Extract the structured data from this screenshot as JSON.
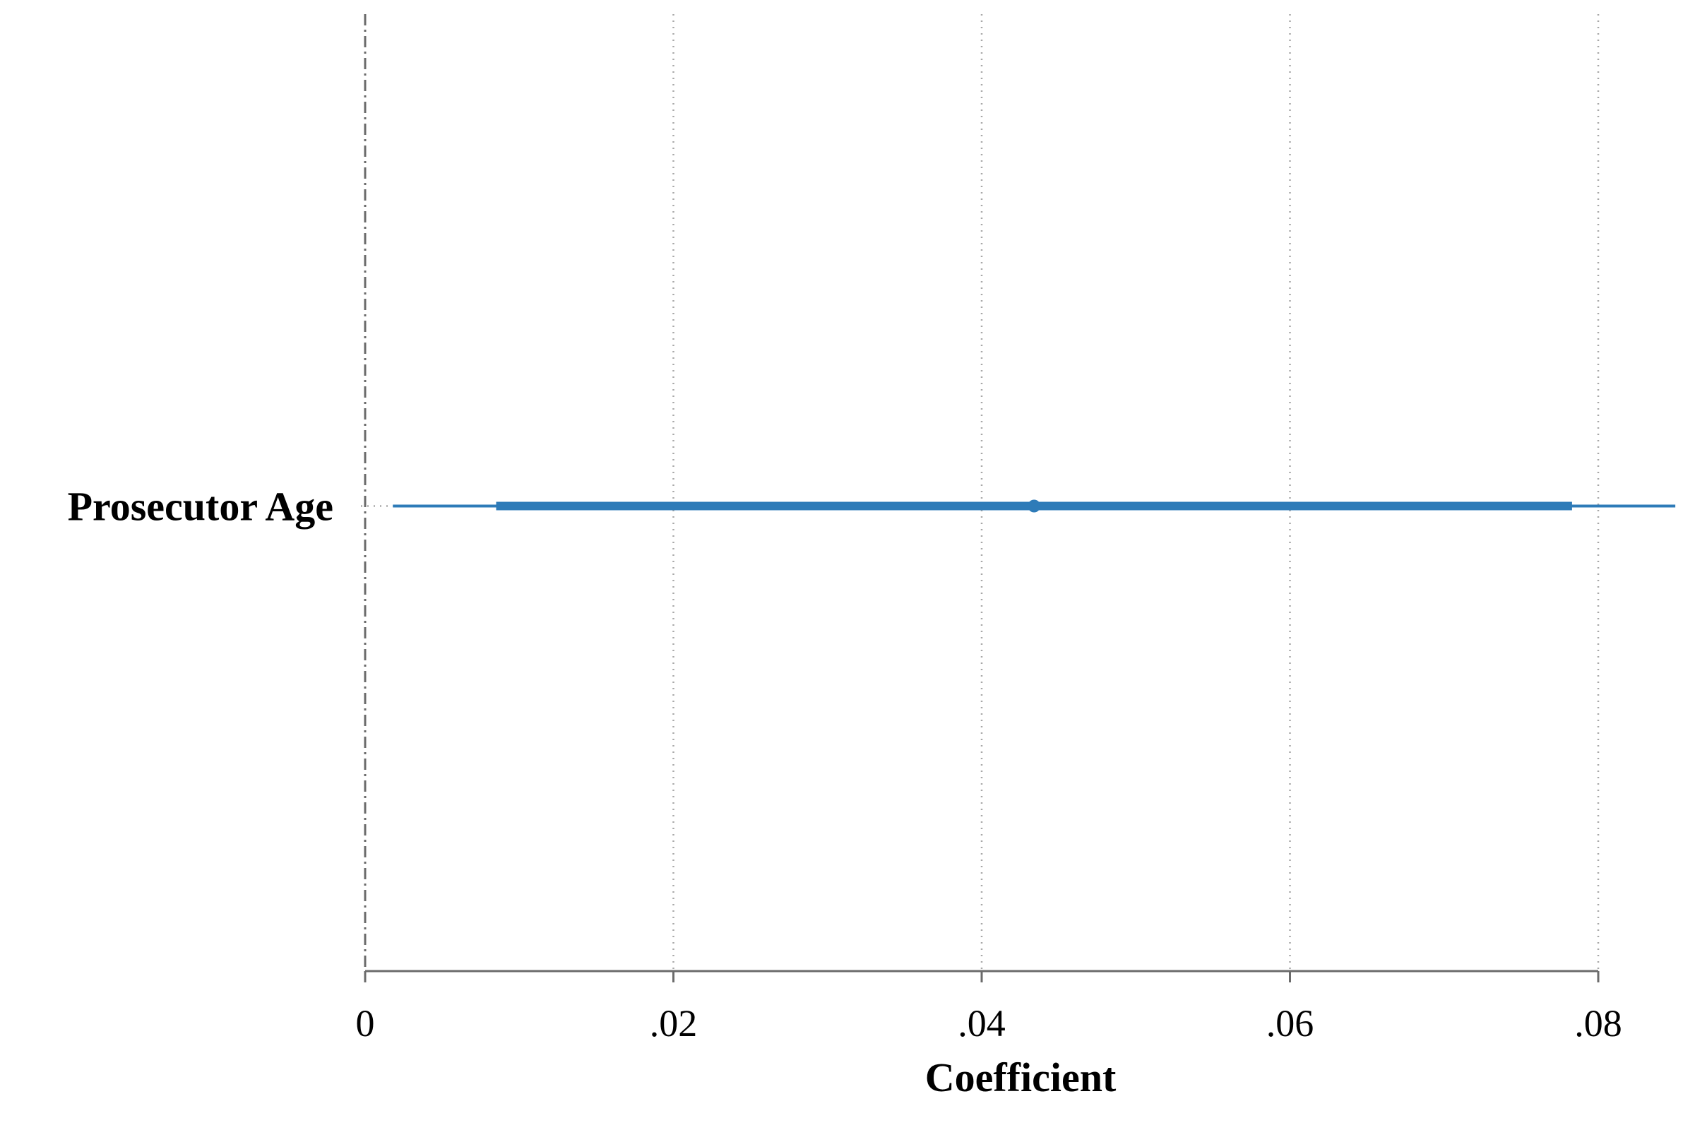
{
  "chart_data": {
    "type": "coefficient-plot",
    "title": "",
    "xlabel": "Coefficient",
    "ylabel": "",
    "xlim": [
      0,
      0.085
    ],
    "x_ticks": [
      0,
      0.02,
      0.04,
      0.06,
      0.08
    ],
    "x_tick_labels": [
      "0",
      ".02",
      ".04",
      ".06",
      ".08"
    ],
    "grid": "vertical-dotted",
    "reference_line": 0,
    "categories": [
      "Prosecutor Age"
    ],
    "series": [
      {
        "estimate": 0.0434,
        "ci_inner": [
          0.0085,
          0.0783
        ],
        "ci_outer": [
          0.0018,
          0.085
        ]
      }
    ],
    "color": "#2e7bb8"
  }
}
